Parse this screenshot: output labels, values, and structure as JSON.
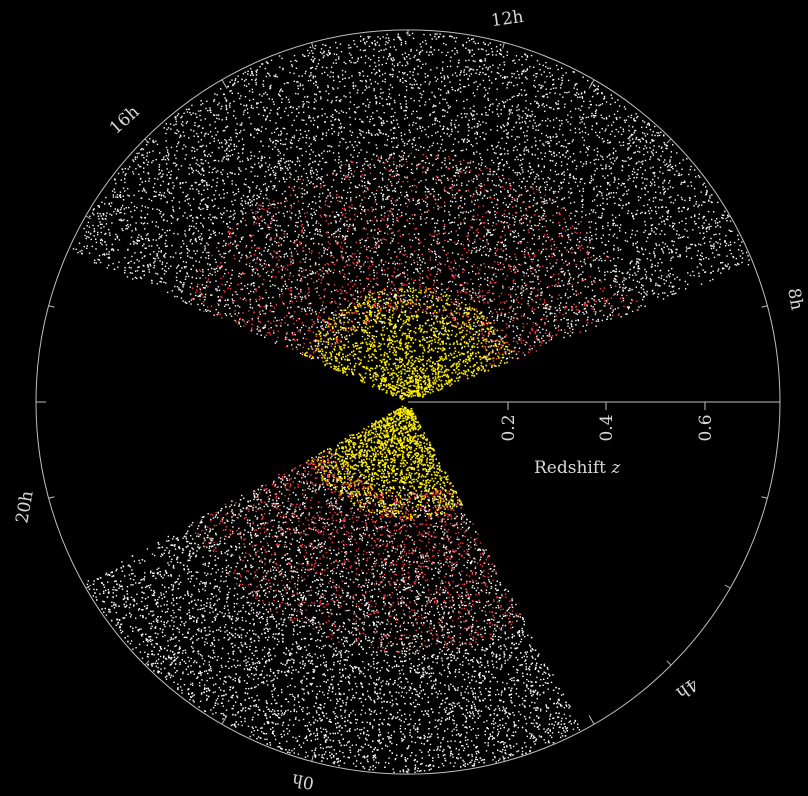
{
  "hour_labels": [
    "12h",
    "8h",
    "4h",
    "0h",
    "20h",
    "16h"
  ],
  "redshift_labels": [
    "0.2",
    "0.4",
    "0.6"
  ],
  "axis_title": "Redshift",
  "axis_variable": "z",
  "colors": {
    "background": "#000000",
    "outline": "#bfbfbf",
    "galaxy_bright": "#ffffff",
    "luminous_red": "#ff3b3b",
    "nearby": "#ffee00"
  }
}
